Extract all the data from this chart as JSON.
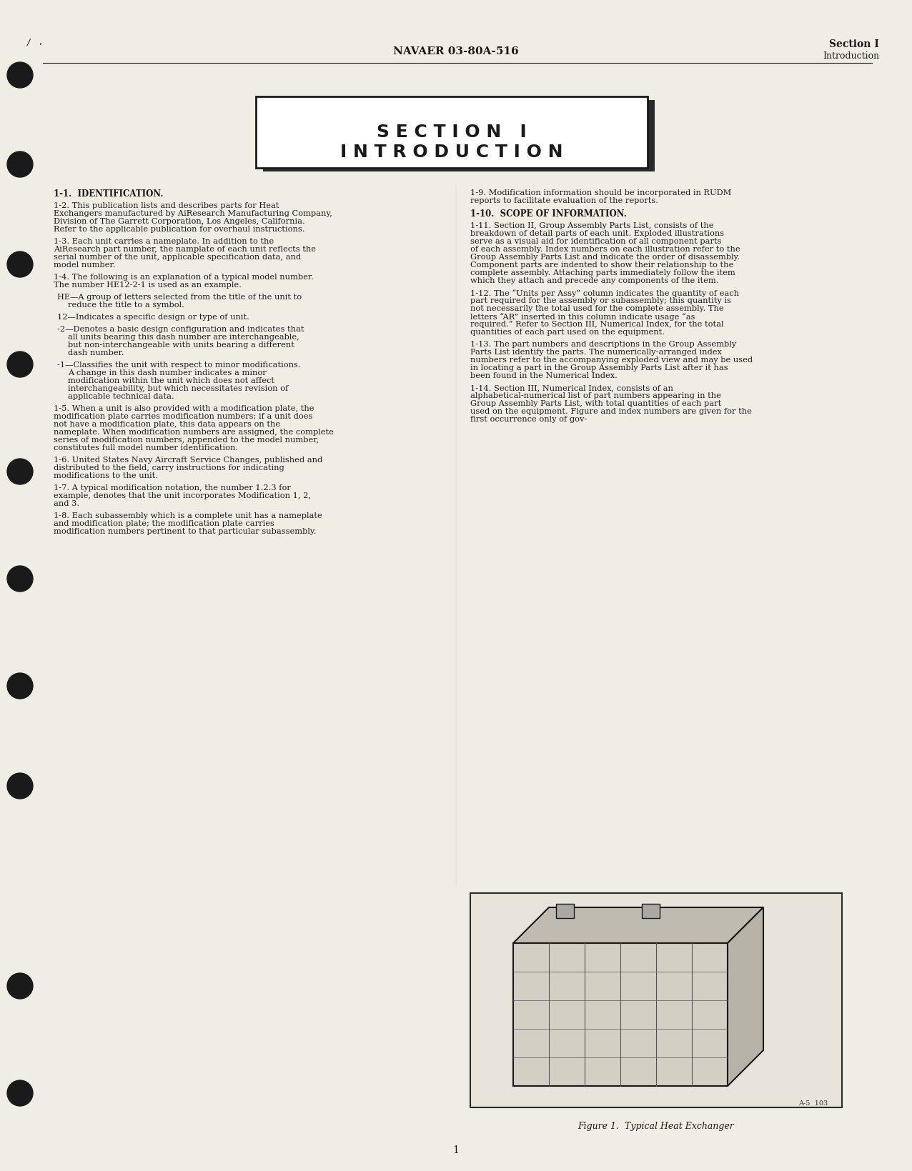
{
  "page_background": "#f5f2eb",
  "header_center": "NAVAER 03-80A-516",
  "header_right_line1": "Section I",
  "header_right_line2": "Introduction",
  "page_number": "1",
  "section_title_line1": "S E C T I O N   I",
  "section_title_line2": "I N T R O D U C T I O N",
  "left_column_text": [
    {
      "style": "heading",
      "text": "1-1.  IDENTIFICATION."
    },
    {
      "style": "body",
      "text": "1-2.  This publication lists and describes parts for Heat Exchangers manufactured by AiResearch Manufacturing Company, Division of The Garrett Corporation, Los Angeles, California.  Refer to the applicable publication for overhaul instructions."
    },
    {
      "style": "body",
      "text": "1-3.  Each unit carries a nameplate.  In addition to the AiResearch part number, the namplate of each unit reflects the serial number of the unit, applicable specification data, and model number."
    },
    {
      "style": "body",
      "text": "1-4.  The following is an explanation of a typical model number.  The number HE12-2-1 is used as an example."
    },
    {
      "style": "indent1",
      "text": "HE—A group of letters selected from the title of the unit to reduce the title to a symbol."
    },
    {
      "style": "indent1",
      "text": "12—Indicates a specific design or type of unit."
    },
    {
      "style": "indent1",
      "text": "-2—Denotes a basic design configuration and indicates that all units bearing this dash number are interchangeable, but non-interchangeable with units bearing a different dash number."
    },
    {
      "style": "indent1",
      "text": "-1—Classifies the unit with respect to minor modifications.  A change in this dash number indicates a minor modification within the unit which does not affect interchangeability, but which necessitates revision of applicable technical data."
    },
    {
      "style": "body",
      "text": "1-5.  When a unit is also provided with a modification plate, the modification plate carries modification numbers; if a unit does not have a modification plate, this data appears on the nameplate.  When modification numbers are assigned, the complete series of modification numbers, appended to the model number, constitutes full model number identification."
    },
    {
      "style": "body",
      "text": "1-6.  United States Navy Aircraft Service Changes, published and distributed to the field, carry instructions for indicating modifications to the unit."
    },
    {
      "style": "body",
      "text": "1-7.  A typical modification notation, the number 1.2.3 for example, denotes that the unit incorporates Modification 1, 2, and 3."
    },
    {
      "style": "body",
      "text": "1-8.  Each subassembly which is a complete unit has a nameplate and modification plate; the modification plate carries modification numbers pertinent to that particular subassembly."
    }
  ],
  "right_column_text": [
    {
      "style": "body",
      "text": "1-9.  Modification information should be incorporated in RUDM reports to facilitate evaluation of the reports."
    },
    {
      "style": "heading",
      "text": "1-10.  SCOPE OF INFORMATION."
    },
    {
      "style": "body",
      "text": "1-11.  Section II, Group Assembly Parts List, consists of the breakdown of detail parts of each unit.  Exploded illustrations serve as a visual aid for identification of all component parts of each assembly.  Index numbers on each illustration refer to the Group Assembly Parts List and indicate the order of disassembly.  Component parts are indented to show their relationship to the complete assembly.  Attaching parts immediately follow the item which they attach and precede any components of the item."
    },
    {
      "style": "body",
      "text": "1-12.  The “Units per Assy” column indicates the quantity of each part required for the assembly or subassembly; this quantity is not necessarily the total used for the complete assembly.  The letters “AR” inserted in this column indicate usage “as required.”  Refer to Section III, Numerical Index, for the total quantities of each part used on the equipment."
    },
    {
      "style": "body",
      "text": "1-13.  The part numbers and descriptions in the Group Assembly Parts List identify the parts.  The numerically-arranged index numbers refer to the accompanying exploded view and may be used in locating a part in the Group Assembly Parts List after it has been found in the Numerical Index."
    },
    {
      "style": "body",
      "text": "1-14.  Section III, Numerical Index, consists of an alphabetical-numerical list of part numbers appearing in the Group Assembly Parts List, with total quantities of each part used on the equipment.  Figure and index numbers are given for the first occurrence only of gov-"
    }
  ],
  "figure_caption": "Figure 1.  Typical Heat Exchanger",
  "figure_label": "A-5  103",
  "bullet_positions": [
    105,
    230,
    370,
    510,
    660,
    810,
    960,
    1100,
    1230,
    1380,
    1530
  ]
}
